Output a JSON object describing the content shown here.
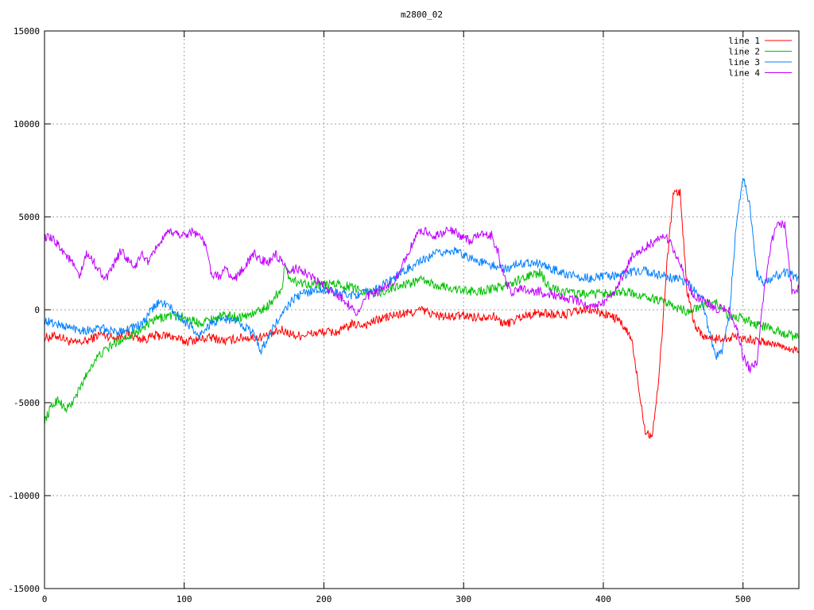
{
  "chart_data": {
    "type": "line",
    "title": "m2800_02",
    "xlabel": "",
    "ylabel": "",
    "xlim": [
      0,
      540
    ],
    "ylim": [
      -15000,
      15000
    ],
    "x_ticks": [
      0,
      100,
      200,
      300,
      400,
      500
    ],
    "y_ticks": [
      -15000,
      -10000,
      -5000,
      0,
      5000,
      10000,
      15000
    ],
    "grid": true,
    "legend": "top-right",
    "series": [
      {
        "name": "line 1",
        "color": "#ff0000",
        "points": [
          [
            0,
            -1500
          ],
          [
            10,
            -1400
          ],
          [
            20,
            -1800
          ],
          [
            30,
            -1700
          ],
          [
            40,
            -1300
          ],
          [
            50,
            -1500
          ],
          [
            60,
            -1300
          ],
          [
            70,
            -1600
          ],
          [
            80,
            -1400
          ],
          [
            90,
            -1400
          ],
          [
            100,
            -1700
          ],
          [
            110,
            -1600
          ],
          [
            120,
            -1500
          ],
          [
            130,
            -1700
          ],
          [
            140,
            -1500
          ],
          [
            150,
            -1500
          ],
          [
            160,
            -1400
          ],
          [
            170,
            -1100
          ],
          [
            180,
            -1400
          ],
          [
            190,
            -1300
          ],
          [
            200,
            -1200
          ],
          [
            210,
            -1200
          ],
          [
            220,
            -800
          ],
          [
            230,
            -800
          ],
          [
            240,
            -500
          ],
          [
            250,
            -300
          ],
          [
            260,
            -200
          ],
          [
            270,
            0
          ],
          [
            280,
            -300
          ],
          [
            290,
            -400
          ],
          [
            300,
            -300
          ],
          [
            310,
            -400
          ],
          [
            320,
            -300
          ],
          [
            330,
            -800
          ],
          [
            340,
            -400
          ],
          [
            350,
            -200
          ],
          [
            360,
            -200
          ],
          [
            370,
            -300
          ],
          [
            380,
            -100
          ],
          [
            390,
            0
          ],
          [
            400,
            -200
          ],
          [
            410,
            -500
          ],
          [
            420,
            -1500
          ],
          [
            425,
            -4000
          ],
          [
            430,
            -6500
          ],
          [
            435,
            -6800
          ],
          [
            440,
            -3500
          ],
          [
            445,
            2000
          ],
          [
            450,
            6200
          ],
          [
            455,
            6300
          ],
          [
            460,
            1000
          ],
          [
            465,
            -700
          ],
          [
            470,
            -1300
          ],
          [
            475,
            -1500
          ],
          [
            480,
            -1600
          ],
          [
            485,
            -1500
          ],
          [
            490,
            -1500
          ],
          [
            495,
            -1400
          ],
          [
            500,
            -1500
          ],
          [
            505,
            -1600
          ],
          [
            510,
            -1700
          ],
          [
            520,
            -1800
          ],
          [
            530,
            -2000
          ],
          [
            540,
            -2200
          ]
        ]
      },
      {
        "name": "line 2",
        "color": "#00c000",
        "points": [
          [
            0,
            -6000
          ],
          [
            5,
            -5200
          ],
          [
            10,
            -4800
          ],
          [
            15,
            -5400
          ],
          [
            20,
            -5000
          ],
          [
            25,
            -4300
          ],
          [
            30,
            -3500
          ],
          [
            35,
            -2800
          ],
          [
            40,
            -2400
          ],
          [
            50,
            -1800
          ],
          [
            60,
            -1400
          ],
          [
            70,
            -1000
          ],
          [
            80,
            -500
          ],
          [
            90,
            -300
          ],
          [
            100,
            -400
          ],
          [
            110,
            -700
          ],
          [
            120,
            -500
          ],
          [
            130,
            -300
          ],
          [
            140,
            -400
          ],
          [
            150,
            -200
          ],
          [
            160,
            200
          ],
          [
            165,
            700
          ],
          [
            170,
            1200
          ],
          [
            172,
            2300
          ],
          [
            175,
            1800
          ],
          [
            180,
            1500
          ],
          [
            190,
            1400
          ],
          [
            200,
            1300
          ],
          [
            210,
            1400
          ],
          [
            220,
            1200
          ],
          [
            230,
            1000
          ],
          [
            240,
            900
          ],
          [
            250,
            1200
          ],
          [
            260,
            1400
          ],
          [
            270,
            1600
          ],
          [
            280,
            1300
          ],
          [
            290,
            1200
          ],
          [
            300,
            1000
          ],
          [
            310,
            1000
          ],
          [
            320,
            1100
          ],
          [
            330,
            1300
          ],
          [
            340,
            1600
          ],
          [
            350,
            1900
          ],
          [
            355,
            2000
          ],
          [
            360,
            1300
          ],
          [
            370,
            1000
          ],
          [
            380,
            900
          ],
          [
            390,
            800
          ],
          [
            400,
            900
          ],
          [
            410,
            1000
          ],
          [
            420,
            900
          ],
          [
            430,
            700
          ],
          [
            440,
            500
          ],
          [
            450,
            200
          ],
          [
            460,
            -100
          ],
          [
            470,
            200
          ],
          [
            480,
            400
          ],
          [
            490,
            -300
          ],
          [
            500,
            -500
          ],
          [
            510,
            -800
          ],
          [
            520,
            -1000
          ],
          [
            530,
            -1300
          ],
          [
            540,
            -1500
          ]
        ]
      },
      {
        "name": "line 3",
        "color": "#0080ff",
        "points": [
          [
            0,
            -600
          ],
          [
            10,
            -800
          ],
          [
            20,
            -1000
          ],
          [
            30,
            -1100
          ],
          [
            40,
            -1000
          ],
          [
            50,
            -1200
          ],
          [
            60,
            -1000
          ],
          [
            70,
            -800
          ],
          [
            75,
            -200
          ],
          [
            80,
            300
          ],
          [
            85,
            400
          ],
          [
            90,
            100
          ],
          [
            95,
            -300
          ],
          [
            100,
            -600
          ],
          [
            105,
            -900
          ],
          [
            110,
            -1500
          ],
          [
            115,
            -1000
          ],
          [
            120,
            -700
          ],
          [
            130,
            -500
          ],
          [
            140,
            -700
          ],
          [
            150,
            -1300
          ],
          [
            155,
            -2200
          ],
          [
            160,
            -1500
          ],
          [
            165,
            -800
          ],
          [
            170,
            -300
          ],
          [
            175,
            300
          ],
          [
            180,
            700
          ],
          [
            190,
            1000
          ],
          [
            200,
            1100
          ],
          [
            210,
            900
          ],
          [
            220,
            800
          ],
          [
            230,
            900
          ],
          [
            240,
            1200
          ],
          [
            250,
            1700
          ],
          [
            260,
            2200
          ],
          [
            270,
            2600
          ],
          [
            280,
            3000
          ],
          [
            290,
            3200
          ],
          [
            300,
            3000
          ],
          [
            310,
            2600
          ],
          [
            320,
            2400
          ],
          [
            330,
            2200
          ],
          [
            340,
            2500
          ],
          [
            350,
            2600
          ],
          [
            360,
            2300
          ],
          [
            370,
            2000
          ],
          [
            380,
            1800
          ],
          [
            390,
            1700
          ],
          [
            400,
            1800
          ],
          [
            410,
            1800
          ],
          [
            420,
            2000
          ],
          [
            430,
            2100
          ],
          [
            440,
            1900
          ],
          [
            450,
            1700
          ],
          [
            460,
            1500
          ],
          [
            470,
            700
          ],
          [
            480,
            -2500
          ],
          [
            485,
            -2200
          ],
          [
            490,
            -500
          ],
          [
            495,
            4500
          ],
          [
            500,
            7200
          ],
          [
            505,
            5500
          ],
          [
            510,
            2000
          ],
          [
            515,
            1500
          ],
          [
            520,
            1700
          ],
          [
            530,
            2000
          ],
          [
            540,
            1700
          ]
        ]
      },
      {
        "name": "line 4",
        "color": "#c000ff",
        "points": [
          [
            0,
            3900
          ],
          [
            5,
            3800
          ],
          [
            10,
            3500
          ],
          [
            15,
            3000
          ],
          [
            20,
            2500
          ],
          [
            25,
            1700
          ],
          [
            30,
            3000
          ],
          [
            35,
            2600
          ],
          [
            40,
            2000
          ],
          [
            45,
            1700
          ],
          [
            50,
            2500
          ],
          [
            55,
            3200
          ],
          [
            60,
            2600
          ],
          [
            65,
            2300
          ],
          [
            70,
            3000
          ],
          [
            75,
            2500
          ],
          [
            80,
            3400
          ],
          [
            85,
            3800
          ],
          [
            90,
            4200
          ],
          [
            95,
            4100
          ],
          [
            100,
            4000
          ],
          [
            105,
            4200
          ],
          [
            110,
            4100
          ],
          [
            115,
            3500
          ],
          [
            120,
            1800
          ],
          [
            125,
            1800
          ],
          [
            130,
            2200
          ],
          [
            135,
            1600
          ],
          [
            140,
            2000
          ],
          [
            145,
            2500
          ],
          [
            150,
            3000
          ],
          [
            155,
            2700
          ],
          [
            160,
            2500
          ],
          [
            165,
            3000
          ],
          [
            170,
            2500
          ],
          [
            175,
            1900
          ],
          [
            180,
            2300
          ],
          [
            190,
            1800
          ],
          [
            200,
            1300
          ],
          [
            205,
            1000
          ],
          [
            210,
            800
          ],
          [
            215,
            500
          ],
          [
            220,
            100
          ],
          [
            225,
            -200
          ],
          [
            230,
            700
          ],
          [
            240,
            1000
          ],
          [
            250,
            1500
          ],
          [
            260,
            3000
          ],
          [
            265,
            3800
          ],
          [
            270,
            4300
          ],
          [
            280,
            4000
          ],
          [
            290,
            4300
          ],
          [
            300,
            3900
          ],
          [
            305,
            3700
          ],
          [
            310,
            4000
          ],
          [
            320,
            4000
          ],
          [
            325,
            3000
          ],
          [
            330,
            1500
          ],
          [
            335,
            900
          ],
          [
            340,
            1200
          ],
          [
            350,
            1000
          ],
          [
            360,
            900
          ],
          [
            370,
            700
          ],
          [
            380,
            500
          ],
          [
            390,
            200
          ],
          [
            400,
            400
          ],
          [
            410,
            1200
          ],
          [
            415,
            2000
          ],
          [
            420,
            2800
          ],
          [
            430,
            3400
          ],
          [
            440,
            3800
          ],
          [
            445,
            4000
          ],
          [
            450,
            3200
          ],
          [
            455,
            2500
          ],
          [
            460,
            1500
          ],
          [
            465,
            700
          ],
          [
            470,
            600
          ],
          [
            480,
            100
          ],
          [
            490,
            0
          ],
          [
            495,
            -900
          ],
          [
            500,
            -2500
          ],
          [
            505,
            -3200
          ],
          [
            510,
            -2800
          ],
          [
            515,
            1000
          ],
          [
            520,
            3500
          ],
          [
            525,
            4800
          ],
          [
            530,
            4500
          ],
          [
            535,
            1000
          ],
          [
            540,
            1200
          ]
        ]
      }
    ]
  }
}
